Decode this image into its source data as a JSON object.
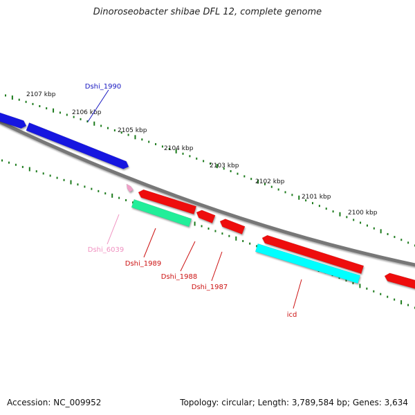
{
  "title": "Dinoroseobacter shibae DFL 12, complete genome",
  "footer": {
    "accession_label": "Accession:",
    "accession": "NC_009952",
    "topology_label": "Topology:",
    "topology": "circular",
    "length_label": "Length:",
    "length": "3,789,584 bp",
    "genes_label": "Genes:",
    "genes": "3,634"
  },
  "scale": {
    "ticks": [
      {
        "label": "2107 kbp",
        "kbp": 2107
      },
      {
        "label": "2106 kbp",
        "kbp": 2106
      },
      {
        "label": "2105 kbp",
        "kbp": 2105
      },
      {
        "label": "2104 kbp",
        "kbp": 2104
      },
      {
        "label": "2103 kbp",
        "kbp": 2103
      },
      {
        "label": "2102 kbp",
        "kbp": 2102
      },
      {
        "label": "2101 kbp",
        "kbp": 2101
      },
      {
        "label": "2100 kbp",
        "kbp": 2100
      }
    ]
  },
  "colors": {
    "backbone": "#7a7a7a",
    "ticks": "#1b7a1b",
    "forward_gene": "#1515e0",
    "reverse_gene": "#ee1111",
    "rna_gene": "#22ee99",
    "highlight_gene": "#00ffff",
    "pseudo_gene": "#f0a0c8"
  },
  "genes": [
    {
      "name": "",
      "strand": "forward",
      "color": "#1515e0"
    },
    {
      "name": "Dshi_1990",
      "strand": "forward",
      "color": "#1515e0",
      "label_color": "#1515c0"
    },
    {
      "name": "Dshi_6039",
      "strand": "reverse",
      "color": "#f0a0c8",
      "label_color": "#f090c0"
    },
    {
      "name": "Dshi_1989",
      "strand": "reverse",
      "color": "#ee1111",
      "label_color": "#cc1111"
    },
    {
      "name": "",
      "strand": "reverse",
      "color": "#22ee99"
    },
    {
      "name": "Dshi_1988",
      "strand": "reverse",
      "color": "#ee1111",
      "label_color": "#cc1111"
    },
    {
      "name": "Dshi_1987",
      "strand": "reverse",
      "color": "#ee1111",
      "label_color": "#cc1111"
    },
    {
      "name": "icd",
      "strand": "reverse",
      "color": "#ee1111",
      "label_color": "#cc1111"
    },
    {
      "name": "",
      "strand": "reverse",
      "color": "#00ffff"
    },
    {
      "name": "",
      "strand": "reverse",
      "color": "#ee1111"
    }
  ]
}
